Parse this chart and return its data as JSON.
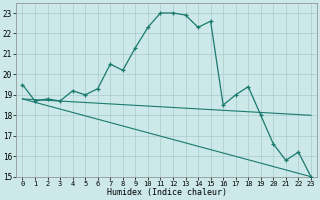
{
  "xlabel": "Humidex (Indice chaleur)",
  "background_color": "#cce8e8",
  "grid_color": "#aacccc",
  "line_color": "#1a7a6e",
  "x_values": [
    0,
    1,
    2,
    3,
    4,
    5,
    6,
    7,
    8,
    9,
    10,
    11,
    12,
    13,
    14,
    15,
    16,
    17,
    18,
    19,
    20,
    21,
    22,
    23
  ],
  "series1": [
    19.5,
    18.7,
    18.8,
    18.7,
    19.2,
    19.0,
    19.3,
    20.5,
    20.2,
    21.3,
    22.3,
    23.0,
    23.0,
    22.9,
    22.3,
    22.6,
    18.5,
    19.0,
    19.4,
    18.0,
    16.6,
    15.8,
    16.2,
    15.0
  ],
  "line2": [
    [
      0,
      18.8
    ],
    [
      23,
      18.0
    ]
  ],
  "line3": [
    [
      0,
      18.8
    ],
    [
      23,
      15.0
    ]
  ],
  "ylim": [
    15,
    23.5
  ],
  "xlim": [
    -0.5,
    23.5
  ],
  "yticks": [
    15,
    16,
    17,
    18,
    19,
    20,
    21,
    22,
    23
  ],
  "xticks": [
    0,
    1,
    2,
    3,
    4,
    5,
    6,
    7,
    8,
    9,
    10,
    11,
    12,
    13,
    14,
    15,
    16,
    17,
    18,
    19,
    20,
    21,
    22,
    23
  ]
}
